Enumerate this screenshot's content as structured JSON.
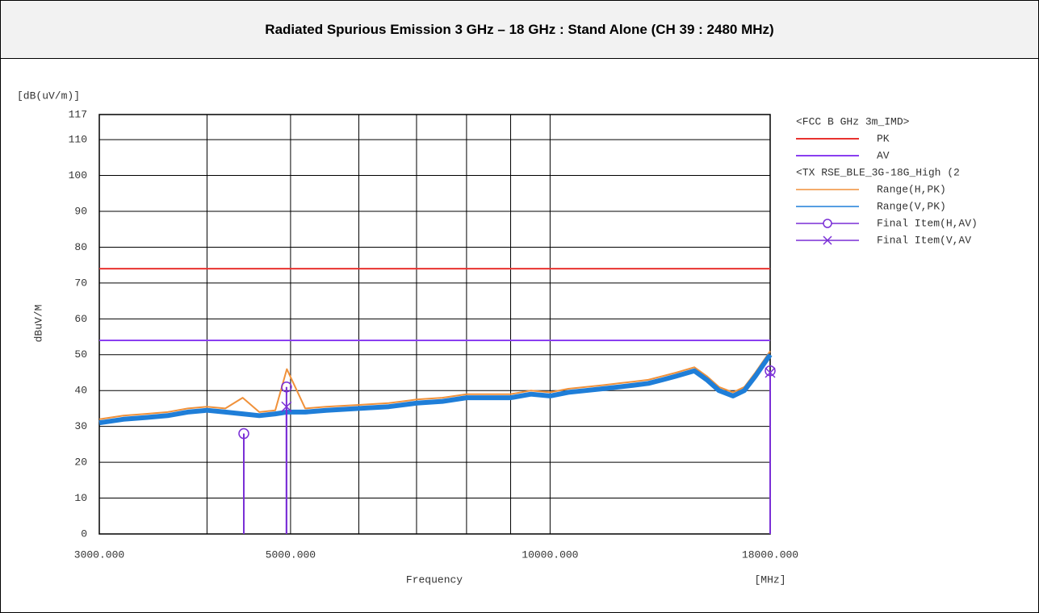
{
  "chart_data": {
    "type": "line",
    "title": "Radiated Spurious Emission 3 GHz – 18 GHz : Stand Alone (CH 39 : 2480 MHz)",
    "y_unit": "[dB(uV/m)]",
    "ylabel": "dBuV/M",
    "xlabel": "Frequency",
    "x_unit": "[MHz]",
    "xscale": "log",
    "xlim": [
      3000,
      18000
    ],
    "ylim": [
      0,
      117
    ],
    "yticks": [
      0,
      10,
      20,
      30,
      40,
      50,
      60,
      70,
      80,
      90,
      100,
      110,
      117
    ],
    "xticks": [
      {
        "value": 3000,
        "label": "3000.000"
      },
      {
        "value": 5000,
        "label": "5000.000"
      },
      {
        "value": 10000,
        "label": "10000.000"
      },
      {
        "value": 18000,
        "label": "18000.000"
      }
    ],
    "xgrid": [
      4000,
      6000,
      7000,
      8000,
      9000
    ],
    "grid": true,
    "legend_groups": [
      "<FCC B GHz 3m_IMD>",
      "<TX RSE_BLE_3G-18G_High (2"
    ],
    "limits": [
      {
        "name": "PK",
        "color": "#e8322f",
        "value": 74
      },
      {
        "name": "AV",
        "color": "#8a3ff0",
        "value": 54
      }
    ],
    "x": [
      3000,
      3200,
      3400,
      3600,
      3800,
      4000,
      4200,
      4400,
      4600,
      4800,
      4950,
      5200,
      5500,
      6000,
      6500,
      7000,
      7500,
      8000,
      8500,
      9000,
      9500,
      10000,
      10500,
      11000,
      11500,
      12000,
      12500,
      13000,
      13500,
      14000,
      14700,
      15200,
      15700,
      16300,
      16800,
      17300,
      18000
    ],
    "series": [
      {
        "name": "Range(H,PK)",
        "color": "#f0913a",
        "values": [
          32,
          33,
          33.5,
          34,
          35,
          35.5,
          35,
          38,
          34,
          34.5,
          46,
          35,
          35.5,
          36,
          36.5,
          37.5,
          38,
          39,
          39,
          39,
          40,
          39.5,
          40.5,
          41,
          41.5,
          42,
          42.5,
          43,
          44,
          45,
          46.5,
          44,
          41,
          39.5,
          41,
          45,
          51
        ]
      },
      {
        "name": "Range(V,PK)",
        "color": "#1f7ed8",
        "values": [
          31,
          32,
          32.5,
          33,
          34,
          34.5,
          34,
          33.5,
          33,
          33.5,
          34,
          34,
          34.5,
          35,
          35.5,
          36.5,
          37,
          38,
          38,
          38,
          39,
          38.5,
          39.5,
          40,
          40.5,
          41,
          41.5,
          42,
          43,
          44,
          45.5,
          43,
          40,
          38.5,
          40,
          44,
          50
        ]
      }
    ],
    "final_items": [
      {
        "name": "Final Item(H,AV)",
        "marker": "circle",
        "color": "#7a2fd6",
        "x": [
          4413,
          4946,
          18000
        ],
        "values": [
          28,
          41,
          45.5
        ]
      },
      {
        "name": "Final Item(V,AV",
        "marker": "cross",
        "color": "#7a2fd6",
        "x": [
          4946,
          18000
        ],
        "values": [
          35.5,
          45
        ]
      }
    ]
  }
}
